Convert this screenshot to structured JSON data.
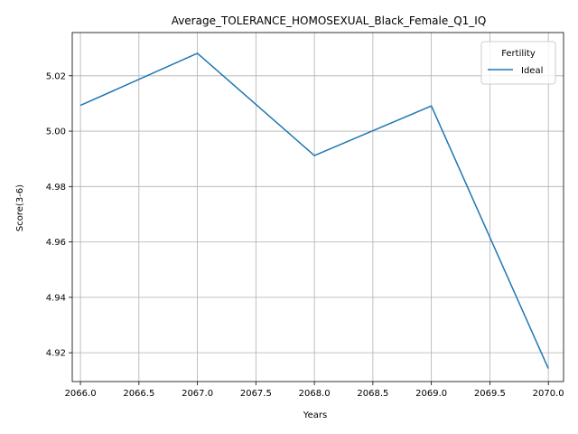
{
  "chart_data": {
    "type": "line",
    "title": "Average_TOLERANCE_HOMOSEXUAL_Black_Female_Q1_IQ",
    "xlabel": "Years",
    "ylabel": "Score(3-6)",
    "x": [
      2066,
      2067,
      2068,
      2069,
      2070
    ],
    "series": [
      {
        "name": "Ideal",
        "values": [
          5.0093,
          5.0281,
          4.9912,
          5.0091,
          4.9143
        ],
        "color": "#1f77b4"
      }
    ],
    "xlim": [
      2065.93,
      2070.13
    ],
    "ylim": [
      4.9096,
      5.0356
    ],
    "xticks": [
      2066.0,
      2066.5,
      2067.0,
      2067.5,
      2068.0,
      2068.5,
      2069.0,
      2069.5,
      2070.0
    ],
    "xtick_labels": [
      "2066.0",
      "2066.5",
      "2067.0",
      "2067.5",
      "2068.0",
      "2068.5",
      "2069.0",
      "2069.5",
      "2070.0"
    ],
    "yticks": [
      4.92,
      4.94,
      4.96,
      4.98,
      5.0,
      5.02
    ],
    "ytick_labels": [
      "4.92",
      "4.94",
      "4.96",
      "4.98",
      "5.00",
      "5.02"
    ],
    "grid": true,
    "legend": {
      "title": "Fertility",
      "placement": "top-right"
    }
  }
}
